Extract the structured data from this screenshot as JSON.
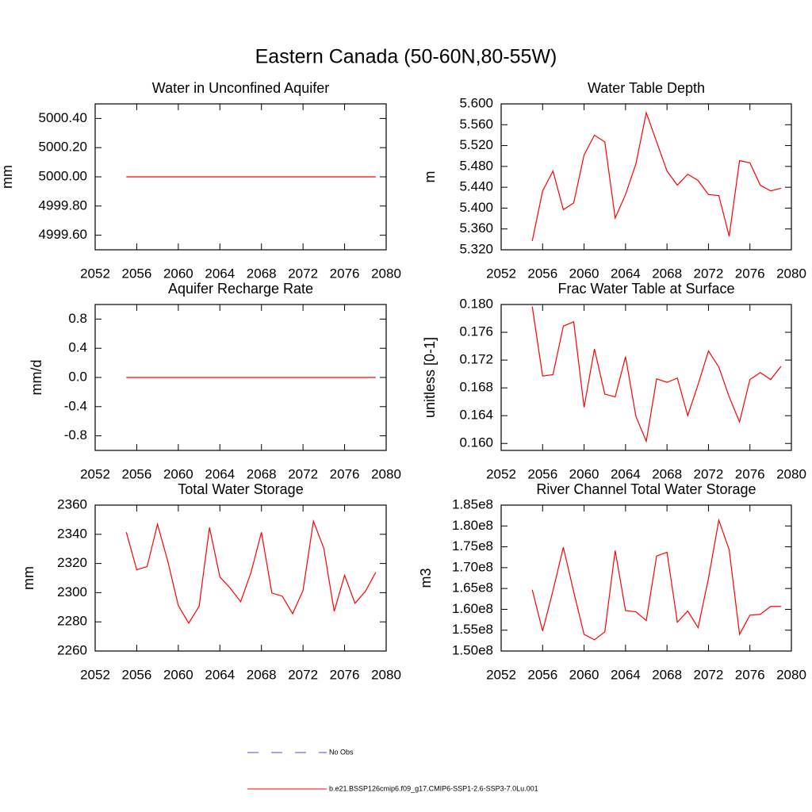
{
  "title": "Eastern Canada (50-60N,80-55W)",
  "legend": [
    {
      "name": "No Obs",
      "color": "#4a4ad0",
      "dashed": true
    },
    {
      "name": "b.e21.BSSP126cmip6.f09_g17.CMIP6-SSP1-2.6-SSP3-7.0Lu.001",
      "color": "#ff0000",
      "dashed": false
    }
  ],
  "chart_data": [
    {
      "type": "line",
      "title": "Water in Unconfined Aquifer",
      "y_label": "mm",
      "color": "#ff0000",
      "x": [
        2055,
        2056,
        2057,
        2058,
        2059,
        2060,
        2061,
        2062,
        2063,
        2064,
        2065,
        2066,
        2067,
        2068,
        2069,
        2070,
        2071,
        2072,
        2073,
        2074,
        2075,
        2076,
        2077,
        2078,
        2079
      ],
      "values": [
        5000,
        5000,
        5000,
        5000,
        5000,
        5000,
        5000,
        5000,
        5000,
        5000,
        5000,
        5000,
        5000,
        5000,
        5000,
        5000,
        5000,
        5000,
        5000,
        5000,
        5000,
        5000,
        5000,
        5000,
        5000
      ],
      "xlim": [
        2052,
        2080
      ],
      "xticks": [
        2052,
        2056,
        2060,
        2064,
        2068,
        2072,
        2076,
        2080
      ],
      "ylim": [
        4999.5,
        5000.5
      ],
      "yticks": [
        {
          "value": 4999.6,
          "label": "4999.60"
        },
        {
          "value": 4999.8,
          "label": "4999.80"
        },
        {
          "value": 5000,
          "label": "5000.00"
        },
        {
          "value": 5000.2,
          "label": "5000.20"
        },
        {
          "value": 5000.4,
          "label": "5000.40"
        }
      ]
    },
    {
      "type": "line",
      "title": "Water Table Depth",
      "y_label": "m",
      "color": "#ff0000",
      "x": [
        2055,
        2056,
        2057,
        2058,
        2059,
        2060,
        2061,
        2062,
        2063,
        2064,
        2065,
        2066,
        2067,
        2068,
        2069,
        2070,
        2071,
        2072,
        2073,
        2074,
        2075,
        2076,
        2077,
        2078,
        2079
      ],
      "values": [
        5.337,
        5.433,
        5.471,
        5.397,
        5.41,
        5.502,
        5.54,
        5.527,
        5.381,
        5.426,
        5.485,
        5.583,
        5.527,
        5.471,
        5.444,
        5.465,
        5.453,
        5.426,
        5.424,
        5.346,
        5.491,
        5.487,
        5.444,
        5.433,
        5.438
      ],
      "xlim": [
        2052,
        2080
      ],
      "xticks": [
        2052,
        2056,
        2060,
        2064,
        2068,
        2072,
        2076,
        2080
      ],
      "ylim": [
        5.32,
        5.6
      ],
      "yticks": [
        {
          "value": 5.32,
          "label": "5.320"
        },
        {
          "value": 5.36,
          "label": "5.360"
        },
        {
          "value": 5.4,
          "label": "5.400"
        },
        {
          "value": 5.44,
          "label": "5.440"
        },
        {
          "value": 5.48,
          "label": "5.480"
        },
        {
          "value": 5.52,
          "label": "5.520"
        },
        {
          "value": 5.56,
          "label": "5.560"
        },
        {
          "value": 5.6,
          "label": "5.600"
        }
      ]
    },
    {
      "type": "line",
      "title": "Aquifer Recharge Rate",
      "y_label": "mm/d",
      "color": "#ff0000",
      "x": [
        2055,
        2056,
        2057,
        2058,
        2059,
        2060,
        2061,
        2062,
        2063,
        2064,
        2065,
        2066,
        2067,
        2068,
        2069,
        2070,
        2071,
        2072,
        2073,
        2074,
        2075,
        2076,
        2077,
        2078,
        2079
      ],
      "values": [
        0,
        0,
        0,
        0,
        0,
        0,
        0,
        0,
        0,
        0,
        0,
        0,
        0,
        0,
        0,
        0,
        0,
        0,
        0,
        0,
        0,
        0,
        0,
        0,
        0
      ],
      "xlim": [
        2052,
        2080
      ],
      "xticks": [
        2052,
        2056,
        2060,
        2064,
        2068,
        2072,
        2076,
        2080
      ],
      "ylim": [
        -1.0,
        1.0
      ],
      "yticks": [
        -0.8,
        -0.4,
        {
          "value": 0,
          "label": "0.0"
        },
        0.4,
        0.8
      ]
    },
    {
      "type": "line",
      "title": "Frac Water Table at Surface",
      "y_label": "unitless [0-1]",
      "color": "#ff0000",
      "x": [
        2055,
        2056,
        2057,
        2058,
        2059,
        2060,
        2061,
        2062,
        2063,
        2064,
        2065,
        2066,
        2067,
        2068,
        2069,
        2070,
        2071,
        2072,
        2073,
        2074,
        2075,
        2076,
        2077,
        2078,
        2079
      ],
      "values": [
        0.1797,
        0.1697,
        0.1699,
        0.1769,
        0.1775,
        0.1652,
        0.1736,
        0.1671,
        0.1667,
        0.1725,
        0.1639,
        0.1603,
        0.1693,
        0.1688,
        0.1694,
        0.164,
        0.1685,
        0.1733,
        0.171,
        0.1667,
        0.1631,
        0.1692,
        0.1702,
        0.1692,
        0.1711
      ],
      "xlim": [
        2052,
        2080
      ],
      "xticks": [
        2052,
        2056,
        2060,
        2064,
        2068,
        2072,
        2076,
        2080
      ],
      "ylim": [
        0.159,
        0.18
      ],
      "yticks": [
        {
          "value": 0.16,
          "label": "0.160"
        },
        0.164,
        0.168,
        0.172,
        0.176,
        {
          "value": 0.18,
          "label": "0.180"
        }
      ]
    },
    {
      "type": "line",
      "title": "Total Water Storage",
      "y_label": "mm",
      "color": "#ff0000",
      "x": [
        2055,
        2056,
        2057,
        2058,
        2059,
        2060,
        2061,
        2062,
        2063,
        2064,
        2065,
        2066,
        2067,
        2068,
        2069,
        2070,
        2071,
        2072,
        2073,
        2074,
        2075,
        2076,
        2077,
        2078,
        2079
      ],
      "values": [
        2341.4,
        2315.7,
        2317.9,
        2346.9,
        2321.2,
        2291.2,
        2279.1,
        2290.6,
        2344.7,
        2310.8,
        2303.1,
        2293.8,
        2314.0,
        2341.4,
        2299.8,
        2297.6,
        2285.6,
        2301.5,
        2349.0,
        2330.4,
        2287.2,
        2311.9,
        2292.7,
        2300.9,
        2314.0
      ],
      "xlim": [
        2052,
        2080
      ],
      "xticks": [
        2052,
        2056,
        2060,
        2064,
        2068,
        2072,
        2076,
        2080
      ],
      "ylim": [
        2260,
        2360
      ],
      "yticks": [
        2260,
        2280,
        2300,
        2320,
        2340,
        2360
      ]
    },
    {
      "type": "line",
      "title": "River Channel Total Water Storage",
      "y_label": "m3",
      "color": "#ff0000",
      "x": [
        2055,
        2056,
        2057,
        2058,
        2059,
        2060,
        2061,
        2062,
        2063,
        2064,
        2065,
        2066,
        2067,
        2068,
        2069,
        2070,
        2071,
        2072,
        2073,
        2074,
        2075,
        2076,
        2077,
        2078,
        2079
      ],
      "values": [
        164700000,
        154800000,
        164500000,
        174900000,
        164200000,
        154000000,
        152700000,
        154600000,
        174100000,
        159700000,
        159400000,
        157300000,
        172800000,
        173700000,
        156900000,
        159600000,
        155600000,
        167400000,
        181400000,
        174300000,
        154000000,
        158600000,
        158800000,
        160700000,
        160700000
      ],
      "xlim": [
        2052,
        2080
      ],
      "xticks": [
        2052,
        2056,
        2060,
        2064,
        2068,
        2072,
        2076,
        2080
      ],
      "ylim": [
        150000000,
        185000000
      ],
      "yticks": [
        {
          "value": 150000000,
          "label": "1.50e8"
        },
        {
          "value": 155000000,
          "label": "1.55e8"
        },
        {
          "value": 160000000,
          "label": "1.60e8"
        },
        {
          "value": 165000000,
          "label": "1.65e8"
        },
        {
          "value": 170000000,
          "label": "1.70e8"
        },
        {
          "value": 175000000,
          "label": "1.75e8"
        },
        {
          "value": 180000000,
          "label": "1.80e8"
        },
        {
          "value": 185000000,
          "label": "1.85e8"
        }
      ]
    }
  ]
}
